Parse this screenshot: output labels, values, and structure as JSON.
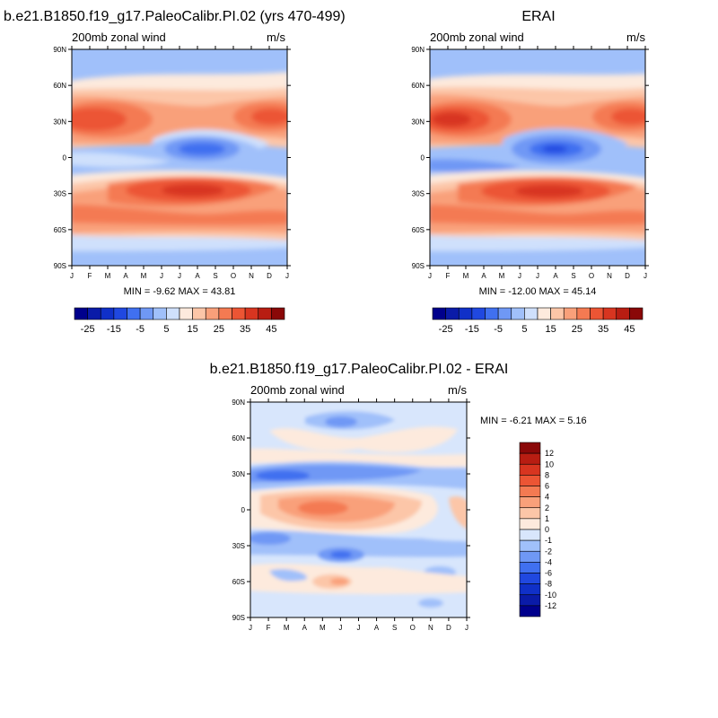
{
  "panels": [
    {
      "title": "b.e21.B1850.f19_g17.PaleoCalibr.PI.02 (yrs 470-499)",
      "left_label": "200mb zonal wind",
      "right_label": "m/s",
      "stats": "MIN =  -9.62 MAX =  43.81",
      "min": -9.62,
      "max": 43.81
    },
    {
      "title": "ERAI",
      "left_label": "200mb zonal wind",
      "right_label": "m/s",
      "stats": "MIN = -12.00 MAX =  45.14",
      "min": -12.0,
      "max": 45.14
    },
    {
      "title": "b.e21.B1850.f19_g17.PaleoCalibr.PI.02 - ERAI",
      "left_label": "200mb zonal wind",
      "right_label": "m/s",
      "stats": "MIN =  -6.21 MAX =   5.16",
      "min": -6.21,
      "max": 5.16
    }
  ],
  "axes": {
    "lat_ticks": [
      "90N",
      "60N",
      "30N",
      "0",
      "30S",
      "60S",
      "90S"
    ],
    "month_ticks": [
      "J",
      "F",
      "M",
      "A",
      "M",
      "J",
      "J",
      "A",
      "S",
      "O",
      "N",
      "D",
      "J"
    ]
  },
  "colorbar_main": {
    "labels": [
      "-25",
      "-15",
      "-5",
      "5",
      "15",
      "25",
      "35",
      "45"
    ],
    "colors": [
      "#00008c",
      "#0a1ba8",
      "#1030c8",
      "#2048e0",
      "#4070f0",
      "#6f98f5",
      "#a0c0fa",
      "#cfe0fc",
      "#fdeadd",
      "#fcc6a8",
      "#f9a07a",
      "#f47a52",
      "#ec5534",
      "#d83520",
      "#b81d12",
      "#8a0808"
    ]
  },
  "colorbar_diff": {
    "labels": [
      "12",
      "10",
      "8",
      "6",
      "4",
      "2",
      "1",
      "0",
      "-1",
      "-2",
      "-4",
      "-6",
      "-8",
      "-10",
      "-12"
    ],
    "colors": [
      "#8a0808",
      "#b81d12",
      "#d83520",
      "#ec5534",
      "#f47a52",
      "#f9a07a",
      "#fcc6a8",
      "#fdeadd",
      "#d8e6fc",
      "#a0c0fa",
      "#6f98f5",
      "#4070f0",
      "#2048e0",
      "#1030c8",
      "#0a1ba8",
      "#00008c"
    ]
  },
  "chart_data": [
    {
      "type": "heatmap",
      "title": "b.e21.B1850.f19_g17.PaleoCalibr.PI.02 (yrs 470-499)",
      "variable": "200mb zonal wind",
      "units": "m/s",
      "x": [
        "J",
        "F",
        "M",
        "A",
        "M",
        "J",
        "J",
        "A",
        "S",
        "O",
        "N",
        "D",
        "J"
      ],
      "y": [
        "90N",
        "60N",
        "30N",
        "0",
        "30S",
        "60S",
        "90S"
      ],
      "levels": [
        -25,
        -20,
        -15,
        -10,
        -5,
        0,
        5,
        10,
        15,
        20,
        25,
        30,
        35,
        40,
        45
      ],
      "min": -9.62,
      "max": 43.81
    },
    {
      "type": "heatmap",
      "title": "ERAI",
      "variable": "200mb zonal wind",
      "units": "m/s",
      "x": [
        "J",
        "F",
        "M",
        "A",
        "M",
        "J",
        "J",
        "A",
        "S",
        "O",
        "N",
        "D",
        "J"
      ],
      "y": [
        "90N",
        "60N",
        "30N",
        "0",
        "30S",
        "60S",
        "90S"
      ],
      "levels": [
        -25,
        -20,
        -15,
        -10,
        -5,
        0,
        5,
        10,
        15,
        20,
        25,
        30,
        35,
        40,
        45
      ],
      "min": -12.0,
      "max": 45.14
    },
    {
      "type": "heatmap",
      "title": "b.e21.B1850.f19_g17.PaleoCalibr.PI.02 - ERAI",
      "variable": "200mb zonal wind",
      "units": "m/s",
      "x": [
        "J",
        "F",
        "M",
        "A",
        "M",
        "J",
        "J",
        "A",
        "S",
        "O",
        "N",
        "D",
        "J"
      ],
      "y": [
        "90N",
        "60N",
        "30N",
        "0",
        "30S",
        "60S",
        "90S"
      ],
      "levels": [
        -12,
        -10,
        -8,
        -6,
        -4,
        -2,
        -1,
        0,
        1,
        2,
        4,
        6,
        8,
        10,
        12
      ],
      "min": -6.21,
      "max": 5.16
    }
  ]
}
